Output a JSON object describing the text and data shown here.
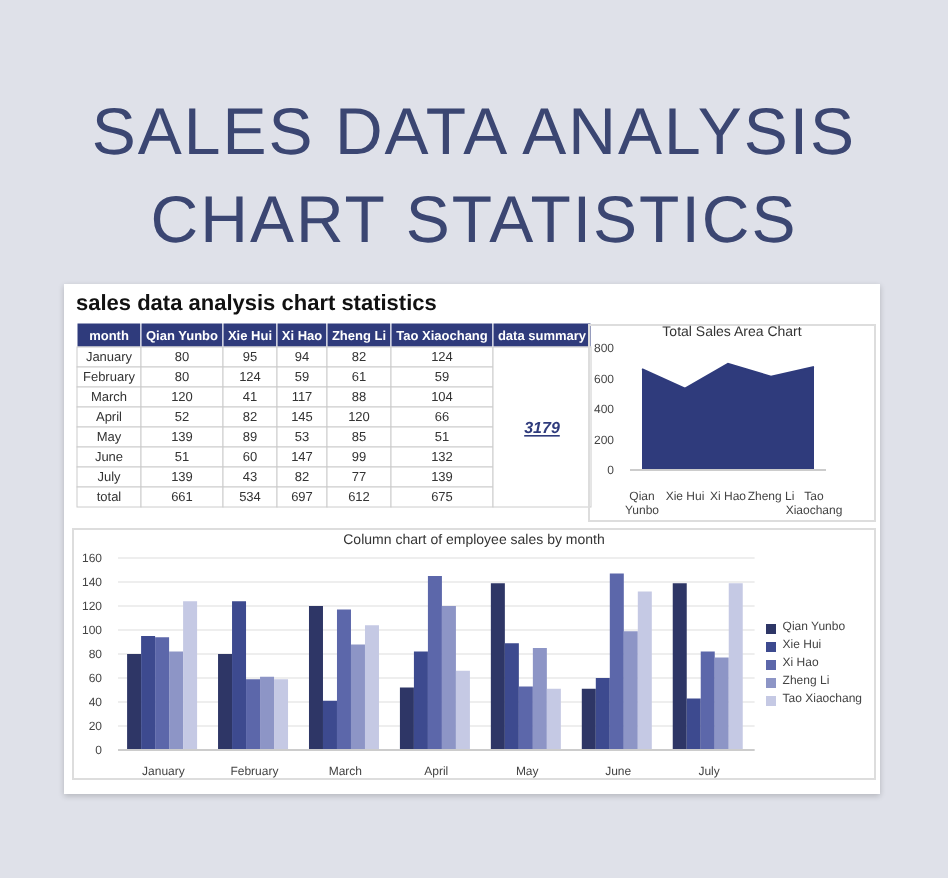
{
  "chart_data": [
    {
      "type": "heatmap",
      "title": "sales data analysis chart statistics",
      "ylabel": "month",
      "categories": [
        "Qian Yunbo",
        "Xie Hui",
        "Xi Hao",
        "Zheng Li",
        "Tao Xiaochang"
      ],
      "data_labels": true,
      "y_categories": [
        "January",
        "February",
        "March",
        "April",
        "May",
        "June",
        "July",
        "total"
      ],
      "cells": [
        [
          80,
          95,
          94,
          82,
          124
        ],
        [
          80,
          124,
          59,
          61,
          59
        ],
        [
          120,
          41,
          117,
          88,
          104
        ],
        [
          52,
          82,
          145,
          120,
          66
        ],
        [
          139,
          89,
          53,
          85,
          51
        ],
        [
          51,
          60,
          147,
          99,
          132
        ],
        [
          139,
          43,
          82,
          77,
          139
        ],
        [
          661,
          534,
          697,
          612,
          675
        ]
      ],
      "annotations": [
        "SALES DATA ANALYSIS CHART STATISTICS",
        "data summary",
        "3179"
      ]
    },
    {
      "type": "area",
      "title": "Total Sales Area Chart",
      "categories": [
        "Qian Yunbo",
        "Xie Hui",
        "Xi Hao",
        "Zheng Li",
        "Tao Xiaochang"
      ],
      "values": [
        661,
        534,
        697,
        612,
        675
      ],
      "color": "#2f3b7c",
      "ylim": [
        0,
        800
      ],
      "yticks": [
        0,
        200,
        400,
        600,
        800
      ]
    },
    {
      "type": "bar",
      "title": "Column chart of employee sales by month",
      "categories": [
        "January",
        "February",
        "March",
        "April",
        "May",
        "June",
        "July"
      ],
      "series": [
        {
          "name": "Qian Yunbo",
          "color": "#2e3666",
          "values": [
            80,
            80,
            120,
            52,
            139,
            51,
            139
          ]
        },
        {
          "name": "Xie Hui",
          "color": "#3d4a8f",
          "values": [
            95,
            124,
            41,
            82,
            89,
            60,
            43
          ]
        },
        {
          "name": "Xi Hao",
          "color": "#5c67aa",
          "values": [
            94,
            59,
            117,
            145,
            53,
            147,
            82
          ]
        },
        {
          "name": "Zheng Li",
          "color": "#8d95c6",
          "values": [
            82,
            61,
            88,
            120,
            85,
            99,
            77
          ]
        },
        {
          "name": "Tao Xiaochang",
          "color": "#c5c9e4",
          "values": [
            124,
            59,
            104,
            66,
            51,
            132,
            139
          ]
        }
      ],
      "ylim": [
        0,
        160
      ],
      "yticks": [
        0,
        20,
        40,
        60,
        80,
        100,
        120,
        140,
        160
      ],
      "grid": "y",
      "legend": "right"
    }
  ]
}
